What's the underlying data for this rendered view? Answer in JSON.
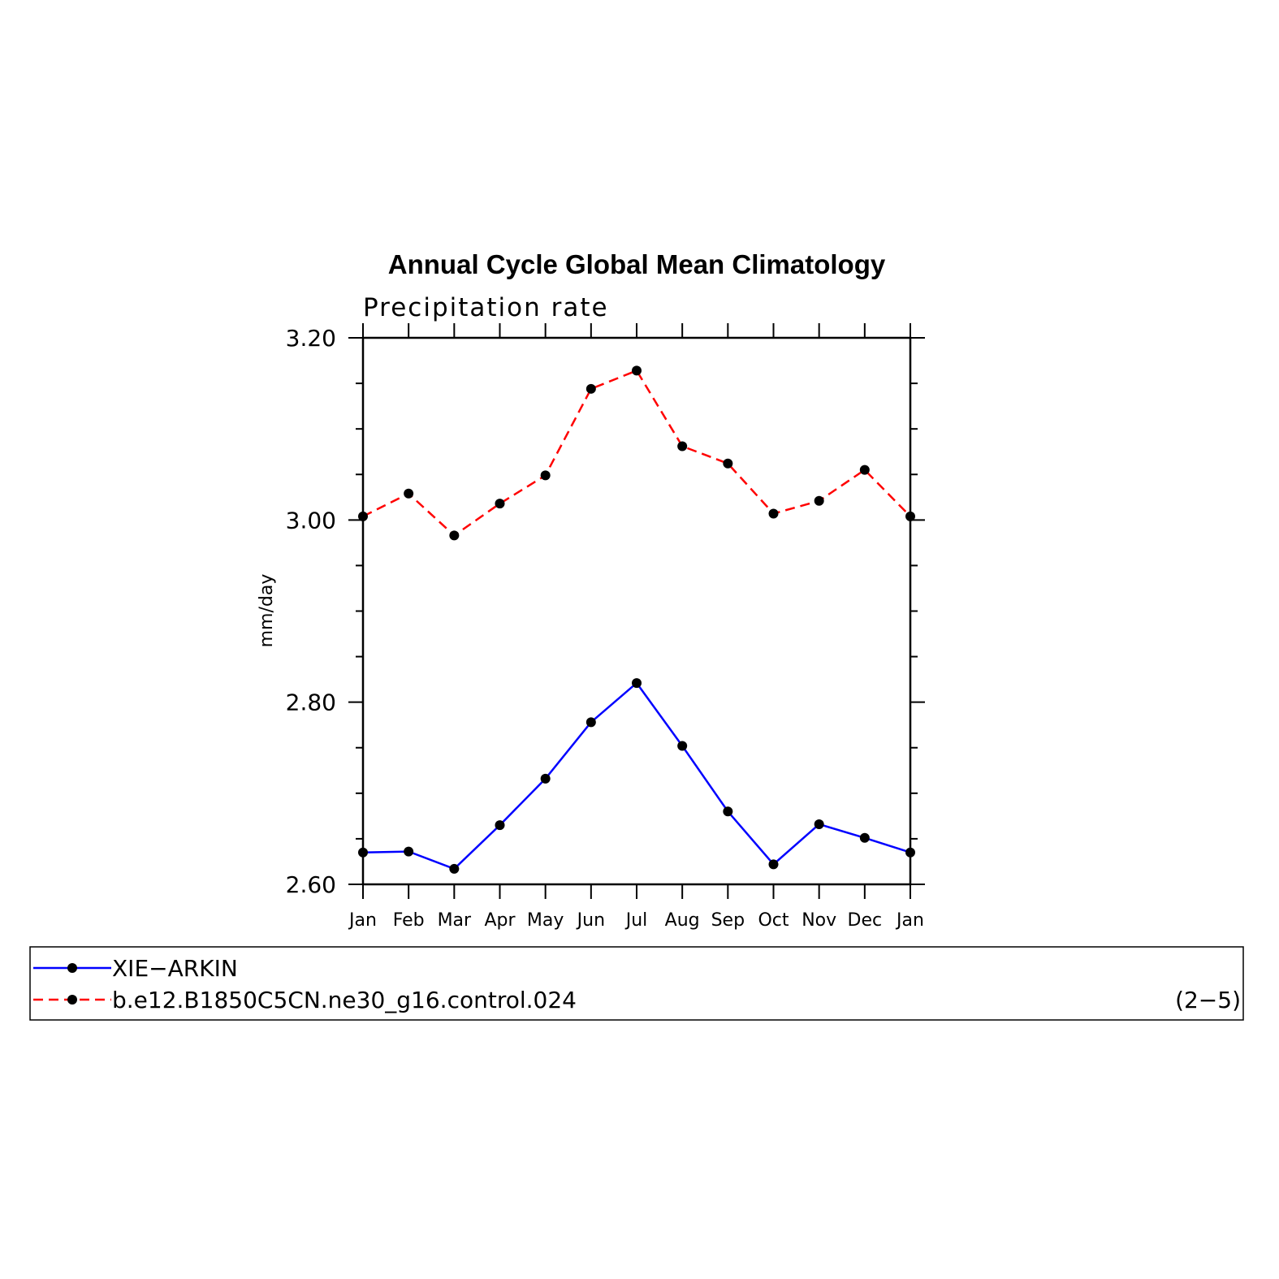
{
  "chart_data": {
    "type": "line",
    "title": "Annual Cycle Global Mean Climatology",
    "subtitle": "Precipitation rate",
    "ylabel": "mm/day",
    "xlabel": "",
    "categories": [
      "Jan",
      "Feb",
      "Mar",
      "Apr",
      "May",
      "Jun",
      "Jul",
      "Aug",
      "Sep",
      "Oct",
      "Nov",
      "Dec",
      "Jan"
    ],
    "ylim": [
      2.6,
      3.2
    ],
    "yticks": [
      "2.60",
      "2.80",
      "3.00",
      "3.20"
    ],
    "grid": false,
    "legend_position": "bottom",
    "series": [
      {
        "name": "XIE−ARKIN",
        "color": "#0000ff",
        "style": "solid",
        "marker": "dot",
        "values": [
          2.635,
          2.636,
          2.617,
          2.665,
          2.716,
          2.778,
          2.821,
          2.752,
          2.68,
          2.622,
          2.666,
          2.651,
          2.635
        ]
      },
      {
        "name": "b.e12.B1850C5CN.ne30_g16.control.024",
        "color": "#ff0000",
        "style": "dashed",
        "marker": "dot",
        "values": [
          3.004,
          3.029,
          2.983,
          3.018,
          3.049,
          3.144,
          3.164,
          3.081,
          3.062,
          3.007,
          3.021,
          3.055,
          3.004
        ]
      }
    ],
    "annotation": "(2−5)"
  }
}
